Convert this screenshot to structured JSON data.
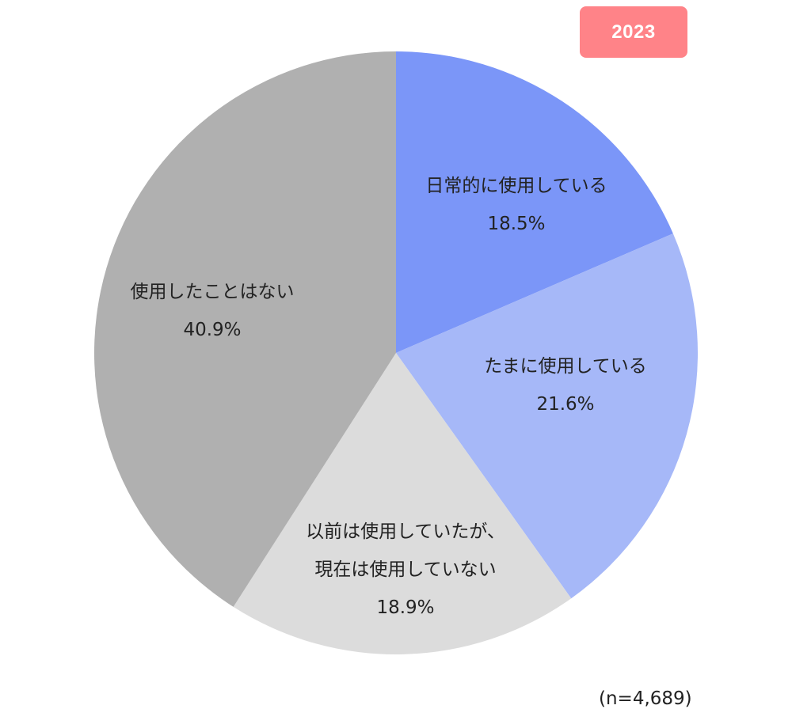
{
  "badge": "2023",
  "sample_note": "(n=4,689)",
  "chart_data": {
    "type": "pie",
    "unit": "%",
    "slices": [
      {
        "label_lines": [
          "日常的に使用している"
        ],
        "value": 18.5,
        "value_label": "18.5%",
        "color": "#7b96f8"
      },
      {
        "label_lines": [
          "たまに使用している"
        ],
        "value": 21.6,
        "value_label": "21.6%",
        "color": "#a6b8f8"
      },
      {
        "label_lines": [
          "以前は使用していたが、",
          "現在は使用していない"
        ],
        "value": 18.9,
        "value_label": "18.9%",
        "color": "#dcdcdc"
      },
      {
        "label_lines": [
          "使用したことはない"
        ],
        "value": 40.9,
        "value_label": "40.9%",
        "color": "#b0b0b0"
      }
    ]
  }
}
